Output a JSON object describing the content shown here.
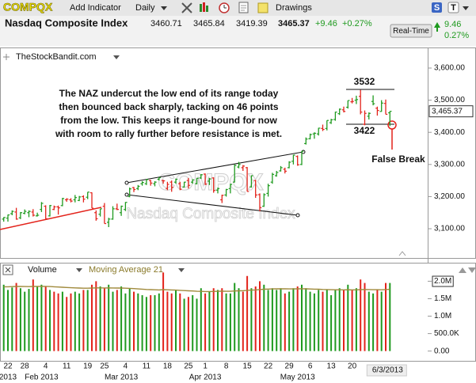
{
  "toolbar": {
    "symbol": "COMPQX",
    "add_indicator": "Add Indicator",
    "period": "Daily",
    "drawings": "Drawings",
    "icon_s": "S",
    "icon_t": "T"
  },
  "header": {
    "name": "Nasdaq Composite Index",
    "open": "3460.71",
    "high": "3465.84",
    "low": "3419.39",
    "last": "3465.37",
    "change": "+9.46",
    "change_pct": "+0.27%",
    "realtime": "Real-Time",
    "change_abs": "9.46",
    "change_pct_abs": "0.27%"
  },
  "chart_data": [
    {
      "type": "ohlc",
      "source": "TheStockBandit.com",
      "watermark": [
        "COMPQX",
        "Nasdaq Composite Index"
      ],
      "annotations": {
        "note": [
          "The NAZ undercut the low end of its range today",
          "then bounced back sharply, tacking on 46 points",
          "from the low. This keeps it range-bound for now",
          "with room to rally further before resistance is met."
        ],
        "high_label": "3532",
        "low_label": "3422",
        "false_break": "False Break"
      },
      "categories": [
        null,
        "22",
        null,
        null,
        null,
        "28",
        null,
        null,
        null,
        null,
        "4",
        null,
        null,
        null,
        null,
        "11",
        null,
        null,
        null,
        null,
        "19",
        null,
        null,
        null,
        "25",
        null,
        null,
        null,
        null,
        "4",
        null,
        null,
        null,
        null,
        "11",
        null,
        null,
        null,
        null,
        "18",
        null,
        null,
        null,
        null,
        "25",
        null,
        null,
        null,
        "1",
        null,
        null,
        null,
        null,
        "8",
        null,
        null,
        null,
        null,
        "15",
        null,
        null,
        null,
        null,
        "22",
        null,
        null,
        null,
        null,
        "29",
        null,
        null,
        null,
        null,
        "6",
        null,
        null,
        null,
        null,
        "13",
        null,
        null,
        null,
        null,
        "20",
        null,
        null,
        null,
        null,
        null,
        null,
        null,
        null,
        null
      ],
      "period_labels": [
        null,
        "2013",
        null,
        null,
        null,
        null,
        null,
        null,
        null,
        "Feb 2013",
        null,
        null,
        null,
        null,
        null,
        null,
        null,
        null,
        null,
        null,
        null,
        null,
        null,
        null,
        null,
        null,
        null,
        null,
        "Mar 2013",
        null,
        null,
        null,
        null,
        null,
        null,
        null,
        null,
        null,
        null,
        null,
        null,
        null,
        null,
        null,
        null,
        null,
        null,
        null,
        "Apr 2013",
        null,
        null,
        null,
        null,
        null,
        null,
        null,
        null,
        null,
        null,
        null,
        null,
        null,
        null,
        null,
        null,
        null,
        null,
        null,
        null,
        null,
        "May 2013",
        null,
        null,
        null,
        null,
        null,
        null,
        null,
        null,
        null,
        null,
        null,
        null,
        null,
        null,
        null,
        null,
        null,
        null,
        null,
        null,
        null,
        "6/3/2013"
      ],
      "open": [
        3130,
        3133,
        3147,
        3152,
        3134,
        3148,
        3150,
        3152,
        3140,
        3160,
        3170,
        3140,
        3160,
        3168,
        3172,
        3190,
        3190,
        3190,
        3188,
        3200,
        3198,
        3212,
        3150,
        3145,
        3170,
        3120,
        3130,
        3162,
        3150,
        3160,
        3200,
        3228,
        3225,
        3240,
        3240,
        3250,
        3240,
        3254,
        3250,
        3225,
        3245,
        3245,
        3240,
        3230,
        3250,
        3245,
        3240,
        3258,
        3270,
        3248,
        3258,
        3220,
        3190,
        3205,
        3225,
        3245,
        3292,
        3290,
        3290,
        3230,
        3250,
        3206,
        3170,
        3210,
        3245,
        3265,
        3280,
        3285,
        3290,
        3310,
        3325,
        3300,
        3365,
        3380,
        3395,
        3395,
        3412,
        3412,
        3430,
        3440,
        3458,
        3470,
        3478,
        3495,
        3500,
        3512,
        3425,
        3450,
        3496,
        3475,
        3465,
        3490,
        3460.71
      ],
      "high": [
        3136,
        3144,
        3157,
        3165,
        3152,
        3160,
        3157,
        3161,
        3150,
        3183,
        3173,
        3174,
        3172,
        3172,
        3196,
        3195,
        3195,
        3205,
        3202,
        3204,
        3214,
        3213,
        3157,
        3162,
        3180,
        3134,
        3170,
        3178,
        3172,
        3183,
        3228,
        3230,
        3236,
        3248,
        3254,
        3252,
        3248,
        3260,
        3252,
        3246,
        3250,
        3256,
        3246,
        3246,
        3258,
        3254,
        3258,
        3270,
        3272,
        3258,
        3260,
        3228,
        3206,
        3224,
        3240,
        3300,
        3308,
        3298,
        3292,
        3266,
        3252,
        3210,
        3210,
        3240,
        3274,
        3280,
        3295,
        3290,
        3310,
        3330,
        3328,
        3342,
        3384,
        3396,
        3400,
        3414,
        3424,
        3437,
        3442,
        3464,
        3474,
        3480,
        3499,
        3507,
        3514,
        3532,
        3468,
        3462,
        3515,
        3480,
        3500,
        3502,
        3465.84
      ],
      "low": [
        3122,
        3122,
        3142,
        3128,
        3130,
        3145,
        3136,
        3138,
        3138,
        3152,
        3130,
        3138,
        3158,
        3144,
        3170,
        3184,
        3182,
        3182,
        3186,
        3182,
        3192,
        3164,
        3125,
        3138,
        3116,
        3105,
        3128,
        3158,
        3140,
        3155,
        3198,
        3214,
        3220,
        3234,
        3236,
        3234,
        3232,
        3250,
        3240,
        3220,
        3215,
        3240,
        3220,
        3228,
        3225,
        3240,
        3238,
        3255,
        3236,
        3236,
        3212,
        3210,
        3180,
        3200,
        3210,
        3244,
        3288,
        3280,
        3216,
        3228,
        3196,
        3154,
        3168,
        3200,
        3240,
        3262,
        3278,
        3272,
        3288,
        3300,
        3296,
        3298,
        3362,
        3378,
        3380,
        3390,
        3404,
        3406,
        3426,
        3436,
        3454,
        3462,
        3474,
        3490,
        3488,
        3456,
        3422,
        3440,
        3484,
        3452,
        3464,
        3456,
        3419.39
      ],
      "close": [
        3135,
        3143,
        3154,
        3130,
        3150,
        3154,
        3154,
        3142,
        3142,
        3179,
        3131,
        3172,
        3168,
        3165,
        3194,
        3192,
        3186,
        3197,
        3199,
        3192,
        3214,
        3164,
        3131,
        3162,
        3116,
        3130,
        3162,
        3160,
        3170,
        3182,
        3224,
        3222,
        3232,
        3244,
        3253,
        3242,
        3245,
        3259,
        3249,
        3238,
        3229,
        3254,
        3223,
        3245,
        3235,
        3252,
        3257,
        3268,
        3239,
        3255,
        3219,
        3225,
        3204,
        3222,
        3238,
        3297,
        3300,
        3295,
        3216,
        3265,
        3205,
        3166,
        3206,
        3234,
        3269,
        3275,
        3290,
        3279,
        3307,
        3329,
        3299,
        3341,
        3379,
        3393,
        3397,
        3413,
        3409,
        3437,
        3439,
        3463,
        3472,
        3465,
        3499,
        3496,
        3502,
        3463,
        3459,
        3459,
        3489,
        3468,
        3491,
        3456,
        3465.37
      ],
      "up_color": "#1f9a1f",
      "down_color": "#e3231b",
      "ylim": [
        3009,
        3664
      ],
      "yticks": [
        {
          "value": 3100,
          "label": "3,100.00"
        },
        {
          "value": 3200,
          "label": "3,200.00"
        },
        {
          "value": 3300,
          "label": "3,300.00"
        },
        {
          "value": 3400,
          "label": "3,400.00"
        },
        {
          "value": 3500,
          "label": "3,500.00"
        },
        {
          "value": 3600,
          "label": "3,600.00"
        }
      ],
      "last_label": {
        "value": 3465.37,
        "label": "3,465.37"
      }
    },
    {
      "type": "bar",
      "series": [
        {
          "name": "Volume",
          "values": [
            1900000,
            1750000,
            1820000,
            1950000,
            1800000,
            1700000,
            1780000,
            2050000,
            1850000,
            1900000,
            1850000,
            1750000,
            1700000,
            1650000,
            1700000,
            1550000,
            1650000,
            1700000,
            1650000,
            1750000,
            1750000,
            1900000,
            2000000,
            1850000,
            1800000,
            1900000,
            1700000,
            1750000,
            1850000,
            1650000,
            1800000,
            1700000,
            1650000,
            1600000,
            1550000,
            1600000,
            1600000,
            1650000,
            2250000,
            1700000,
            1650000,
            1750000,
            1650000,
            1500000,
            1550000,
            1600000,
            1500000,
            1800000,
            1650000,
            1700000,
            1800000,
            1750000,
            1800000,
            1650000,
            1650000,
            1950000,
            1800000,
            1700000,
            2150000,
            1800000,
            1850000,
            2000000,
            1900000,
            1750000,
            1800000,
            1750000,
            1800000,
            1650000,
            1700000,
            1800000,
            1850000,
            1900000,
            1800000,
            1700000,
            1650000,
            1750000,
            1700000,
            1750000,
            1600000,
            1750000,
            1800000,
            1750000,
            1900000,
            1750000,
            1800000,
            2050000,
            1950000,
            1700000,
            1650000,
            1750000,
            1700000,
            1950000,
            1950000
          ]
        },
        {
          "name": "Moving Average 21",
          "type": "line",
          "color": "#a08a3c",
          "values": [
            1840000,
            1840000,
            1845000,
            1850000,
            1850000,
            1848000,
            1846000,
            1850000,
            1852000,
            1855000,
            1852000,
            1848000,
            1842000,
            1835000,
            1828000,
            1820000,
            1815000,
            1810000,
            1805000,
            1800000,
            1800000,
            1805000,
            1810000,
            1810000,
            1808000,
            1810000,
            1808000,
            1805000,
            1805000,
            1800000,
            1795000,
            1788000,
            1780000,
            1772000,
            1765000,
            1760000,
            1755000,
            1750000,
            1760000,
            1755000,
            1750000,
            1745000,
            1740000,
            1732000,
            1725000,
            1720000,
            1712000,
            1710000,
            1705000,
            1705000,
            1708000,
            1712000,
            1715000,
            1712000,
            1712000,
            1720000,
            1725000,
            1728000,
            1740000,
            1745000,
            1750000,
            1762000,
            1770000,
            1775000,
            1780000,
            1782000,
            1785000,
            1782000,
            1780000,
            1780000,
            1782000,
            1785000,
            1782000,
            1778000,
            1772000,
            1770000,
            1765000,
            1762000,
            1758000,
            1755000,
            1755000,
            1752000,
            1755000,
            1752000,
            1752000,
            1760000,
            1765000,
            1762000,
            1758000,
            1758000,
            1755000,
            1762000,
            1768000
          ]
        }
      ],
      "ylim": [
        -280000,
        2530000
      ],
      "yticks": [
        {
          "value": 0,
          "label": "0.00"
        },
        {
          "value": 500000,
          "label": "500.0K"
        },
        {
          "value": 1000000,
          "label": "1.0M"
        },
        {
          "value": 1500000,
          "label": "1.5M"
        },
        {
          "value": 2000000,
          "label": "2.0M"
        }
      ]
    }
  ]
}
